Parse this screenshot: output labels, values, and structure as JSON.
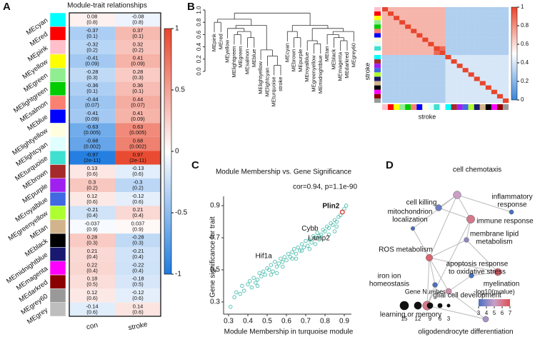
{
  "chart_data": [
    {
      "panel": "A",
      "type": "heatmap",
      "title": "Module-trait relationships",
      "rows": [
        "MEcyan",
        "MEred",
        "MEpink",
        "MEyellow",
        "MEgreen",
        "MElightgreen",
        "MEsalmon",
        "MEblue",
        "MElightyellow",
        "MElightcyan",
        "MEturquoise",
        "MEbrown",
        "MEpurple",
        "MEroyalblue",
        "MEgreenyellow",
        "MEtan",
        "MEblack",
        "MEmidnightblue",
        "MEmagenta",
        "MEdarkred",
        "MEgrey60",
        "MEgrey"
      ],
      "row_colors": [
        "#00ffff",
        "#ff0000",
        "#ffc0cb",
        "#ffff00",
        "#90ee90",
        "#00cc00",
        "#fa8072",
        "#0000ff",
        "#ffffe0",
        "#e0ffff",
        "#40e0d0",
        "#a52a2a",
        "#a020f0",
        "#4169e1",
        "#adff2f",
        "#d2b48c",
        "#000000",
        "#191970",
        "#ff00ff",
        "#8b0000",
        "#999999",
        "#bebebe"
      ],
      "columns": [
        "con",
        "stroke"
      ],
      "values": [
        [
          0.08,
          -0.08
        ],
        [
          -0.37,
          0.37
        ],
        [
          -0.32,
          0.32
        ],
        [
          -0.41,
          0.41
        ],
        [
          -0.28,
          0.28
        ],
        [
          -0.36,
          0.36
        ],
        [
          -0.44,
          0.44
        ],
        [
          -0.41,
          0.41
        ],
        [
          -0.63,
          0.63
        ],
        [
          -0.68,
          0.68
        ],
        [
          -0.97,
          0.97
        ],
        [
          0.13,
          -0.13
        ],
        [
          0.3,
          -0.3
        ],
        [
          0.12,
          -0.12
        ],
        [
          -0.21,
          0.21
        ],
        [
          -0.037,
          0.037
        ],
        [
          0.28,
          -0.28
        ],
        [
          0.21,
          -0.21
        ],
        [
          0.22,
          -0.22
        ],
        [
          0.18,
          -0.18
        ],
        [
          0.12,
          -0.12
        ],
        [
          -0.14,
          0.14
        ]
      ],
      "p_labels": [
        [
          "(0.8)",
          "(0.8)"
        ],
        [
          "(0.1)",
          "(0.1)"
        ],
        [
          "(0.2)",
          "(0.2)"
        ],
        [
          "(0.09)",
          "(0.09)"
        ],
        [
          "(0.3)",
          "(0.3)"
        ],
        [
          "(0.1)",
          "(0.1)"
        ],
        [
          "(0.07)",
          "(0.07)"
        ],
        [
          "(0.09)",
          "(0.09)"
        ],
        [
          "(0.005)",
          "(0.005)"
        ],
        [
          "(0.002)",
          "(0.002)"
        ],
        [
          "(2e-11)",
          "(2e-11)"
        ],
        [
          "(0.6)",
          "(0.6)"
        ],
        [
          "(0.2)",
          "(0.2)"
        ],
        [
          "(0.6)",
          "(0.6)"
        ],
        [
          "(0.4)",
          "(0.4)"
        ],
        [
          "(0.9)",
          "(0.9)"
        ],
        [
          "(0.3)",
          "(0.3)"
        ],
        [
          "(0.4)",
          "(0.4)"
        ],
        [
          "(0.4)",
          "(0.4)"
        ],
        [
          "(0.5)",
          "(0.5)"
        ],
        [
          "(0.6)",
          "(0.6)"
        ],
        [
          "(0.6)",
          "(0.6)"
        ]
      ],
      "zlim": [
        -1,
        1
      ],
      "zticks": [
        1,
        0.5,
        0,
        -0.5,
        -1
      ]
    },
    {
      "panel": "B",
      "type": "dendrogram",
      "leaves": [
        "MEpink",
        "MEred",
        "MEyellow",
        "MElightgreen",
        "MEgreen",
        "MEsalmon",
        "MEblue",
        "MElightyellow",
        "MElightcyan",
        "MEturquoise",
        "stroke",
        "MEcyan",
        "MEbrown",
        "MEpurple",
        "MEroyalblue",
        "MEgreenyellow",
        "MEmidnightblue",
        "MEtan",
        "MEblack",
        "MEmagenta",
        "MEdarkred",
        "MEgrey60"
      ],
      "leaf_label_colors": [
        "#000",
        "#000",
        "#000",
        "#000",
        "#000",
        "#000",
        "#000",
        "#000",
        "#000",
        "#000",
        "#e02020",
        "#000",
        "#000",
        "#000",
        "#000",
        "#000",
        "#000",
        "#000",
        "#000",
        "#000",
        "#000",
        "#000"
      ],
      "merges": [
        [
          9,
          10,
          0.1
        ],
        [
          8,
          22,
          0.25
        ],
        [
          7,
          23,
          0.35
        ],
        [
          5,
          6,
          0.55
        ],
        [
          3,
          4,
          0.6
        ],
        [
          26,
          25,
          0.65
        ],
        [
          2,
          27,
          0.7
        ],
        [
          28,
          24,
          0.75
        ],
        [
          0,
          1,
          0.8
        ],
        [
          30,
          29,
          0.85
        ],
        [
          12,
          13,
          0.55
        ],
        [
          11,
          32,
          0.65
        ],
        [
          15,
          16,
          0.45
        ],
        [
          14,
          34,
          0.5
        ],
        [
          19,
          20,
          0.5
        ],
        [
          18,
          36,
          0.55
        ],
        [
          17,
          37,
          0.6
        ],
        [
          38,
          21,
          0.65
        ],
        [
          35,
          39,
          0.7
        ],
        [
          33,
          40,
          0.75
        ],
        [
          31,
          41,
          0.95
        ]
      ],
      "ylim": [
        0,
        1
      ],
      "yticks": [
        {
          "value": 0,
          "label": "0.0"
        },
        0.2,
        0.4,
        0.6,
        0.8,
        {
          "value": 1,
          "label": "1.0"
        }
      ]
    },
    {
      "type": "correlation-heatmap",
      "ylabel": "stroke",
      "xlabel": "stroke",
      "side_colors": [
        "#ffc0cb",
        "#ff0000",
        "#ffff00",
        "#90ee90",
        "#00cc00",
        "#fa8072",
        "#0000ff",
        "#ffffe0",
        "#e0ffff",
        "#40e0d0",
        "#ffffff",
        "#00ffff",
        "#a52a2a",
        "#a020f0",
        "#4169e1",
        "#adff2f",
        "#191970",
        "#d2b48c",
        "#000000",
        "#ff00ff",
        "#8b0000",
        "#999999"
      ],
      "matrix": [
        [
          1,
          0.7,
          0.7,
          0.7,
          0.7,
          0.7,
          0.7,
          0.7,
          0.7,
          0.7,
          0.7,
          0.3,
          0.3,
          0.3,
          0.3,
          0.3,
          0.3,
          0.3,
          0.3,
          0.3,
          0.3,
          0.3
        ],
        [
          0.7,
          1,
          0.7,
          0.7,
          0.7,
          0.7,
          0.7,
          0.7,
          0.7,
          0.7,
          0.7,
          0.3,
          0.3,
          0.3,
          0.3,
          0.3,
          0.3,
          0.3,
          0.3,
          0.3,
          0.3,
          0.3
        ],
        [
          0.7,
          0.7,
          1,
          0.7,
          0.7,
          0.7,
          0.7,
          0.7,
          0.7,
          0.7,
          0.7,
          0.3,
          0.3,
          0.3,
          0.3,
          0.3,
          0.3,
          0.3,
          0.3,
          0.3,
          0.3,
          0.3
        ],
        [
          0.7,
          0.7,
          0.7,
          1,
          0.7,
          0.7,
          0.7,
          0.7,
          0.7,
          0.7,
          0.7,
          0.3,
          0.3,
          0.3,
          0.3,
          0.3,
          0.3,
          0.3,
          0.3,
          0.3,
          0.3,
          0.3
        ],
        [
          0.7,
          0.7,
          0.7,
          0.7,
          1,
          0.7,
          0.7,
          0.7,
          0.7,
          0.7,
          0.7,
          0.3,
          0.3,
          0.3,
          0.3,
          0.3,
          0.3,
          0.3,
          0.3,
          0.3,
          0.3,
          0.3
        ],
        [
          0.7,
          0.7,
          0.7,
          0.7,
          0.7,
          1,
          0.7,
          0.7,
          0.7,
          0.7,
          0.7,
          0.3,
          0.3,
          0.3,
          0.3,
          0.3,
          0.3,
          0.3,
          0.3,
          0.3,
          0.3,
          0.3
        ],
        [
          0.7,
          0.7,
          0.7,
          0.7,
          0.7,
          0.7,
          1,
          0.7,
          0.7,
          0.7,
          0.7,
          0.3,
          0.3,
          0.3,
          0.3,
          0.3,
          0.3,
          0.3,
          0.3,
          0.3,
          0.3,
          0.3
        ],
        [
          0.7,
          0.7,
          0.7,
          0.7,
          0.7,
          0.7,
          0.7,
          1,
          0.7,
          0.7,
          0.7,
          0.3,
          0.3,
          0.3,
          0.3,
          0.3,
          0.3,
          0.3,
          0.3,
          0.3,
          0.3,
          0.3
        ],
        [
          0.7,
          0.7,
          0.7,
          0.7,
          0.7,
          0.7,
          0.7,
          0.7,
          1,
          0.7,
          0.7,
          0.3,
          0.3,
          0.3,
          0.3,
          0.3,
          0.3,
          0.3,
          0.3,
          0.3,
          0.3,
          0.3
        ],
        [
          0.7,
          0.7,
          0.7,
          0.7,
          0.7,
          0.7,
          0.7,
          0.7,
          0.7,
          1,
          0.9,
          0.3,
          0.3,
          0.3,
          0.3,
          0.3,
          0.3,
          0.3,
          0.3,
          0.3,
          0.3,
          0.3
        ],
        [
          0.7,
          0.7,
          0.7,
          0.7,
          0.7,
          0.7,
          0.7,
          0.7,
          0.7,
          0.9,
          1,
          0.3,
          0.3,
          0.3,
          0.3,
          0.3,
          0.3,
          0.3,
          0.3,
          0.3,
          0.3,
          0.3
        ],
        [
          0.3,
          0.3,
          0.3,
          0.3,
          0.3,
          0.3,
          0.3,
          0.3,
          0.3,
          0.3,
          0.3,
          1,
          0.4,
          0.4,
          0.4,
          0.4,
          0.4,
          0.4,
          0.4,
          0.4,
          0.4,
          0.4
        ],
        [
          0.3,
          0.3,
          0.3,
          0.3,
          0.3,
          0.3,
          0.3,
          0.3,
          0.3,
          0.3,
          0.3,
          0.4,
          1,
          0.4,
          0.4,
          0.4,
          0.4,
          0.4,
          0.4,
          0.4,
          0.4,
          0.4
        ],
        [
          0.3,
          0.3,
          0.3,
          0.3,
          0.3,
          0.3,
          0.3,
          0.3,
          0.3,
          0.3,
          0.3,
          0.4,
          0.4,
          1,
          0.4,
          0.4,
          0.4,
          0.4,
          0.4,
          0.4,
          0.4,
          0.4
        ],
        [
          0.3,
          0.3,
          0.3,
          0.3,
          0.3,
          0.3,
          0.3,
          0.3,
          0.3,
          0.3,
          0.3,
          0.4,
          0.4,
          0.4,
          1,
          0.4,
          0.4,
          0.4,
          0.4,
          0.4,
          0.4,
          0.4
        ],
        [
          0.3,
          0.3,
          0.3,
          0.3,
          0.3,
          0.3,
          0.3,
          0.3,
          0.3,
          0.3,
          0.3,
          0.4,
          0.4,
          0.4,
          0.4,
          1,
          0.4,
          0.4,
          0.4,
          0.4,
          0.4,
          0.4
        ],
        [
          0.3,
          0.3,
          0.3,
          0.3,
          0.3,
          0.3,
          0.3,
          0.3,
          0.3,
          0.3,
          0.3,
          0.4,
          0.4,
          0.4,
          0.4,
          0.4,
          1,
          0.4,
          0.4,
          0.4,
          0.4,
          0.4
        ],
        [
          0.3,
          0.3,
          0.3,
          0.3,
          0.3,
          0.3,
          0.3,
          0.3,
          0.3,
          0.3,
          0.3,
          0.4,
          0.4,
          0.4,
          0.4,
          0.4,
          0.4,
          1,
          0.4,
          0.4,
          0.4,
          0.4
        ],
        [
          0.3,
          0.3,
          0.3,
          0.3,
          0.3,
          0.3,
          0.3,
          0.3,
          0.3,
          0.3,
          0.3,
          0.4,
          0.4,
          0.4,
          0.4,
          0.4,
          0.4,
          0.4,
          1,
          0.4,
          0.4,
          0.4
        ],
        [
          0.3,
          0.3,
          0.3,
          0.3,
          0.3,
          0.3,
          0.3,
          0.3,
          0.3,
          0.3,
          0.3,
          0.4,
          0.4,
          0.4,
          0.4,
          0.4,
          0.4,
          0.4,
          0.4,
          1,
          0.4,
          0.4
        ],
        [
          0.3,
          0.3,
          0.3,
          0.3,
          0.3,
          0.3,
          0.3,
          0.3,
          0.3,
          0.3,
          0.3,
          0.4,
          0.4,
          0.4,
          0.4,
          0.4,
          0.4,
          0.4,
          0.4,
          0.4,
          1,
          0.4
        ],
        [
          0.3,
          0.3,
          0.3,
          0.3,
          0.3,
          0.3,
          0.3,
          0.3,
          0.3,
          0.3,
          0.3,
          0.4,
          0.4,
          0.4,
          0.4,
          0.4,
          0.4,
          0.4,
          0.4,
          0.4,
          0.4,
          1
        ]
      ],
      "zlim": [
        0,
        1
      ],
      "zticks": [
        1,
        0.8,
        0.6,
        0.4,
        0.2,
        0
      ]
    },
    {
      "panel": "C",
      "type": "scatter",
      "title": "Module Membership vs. Gene Significance",
      "subtitle": "cor=0.94, p=1.1e-90",
      "xlabel": "Module Membership in turquoise module",
      "ylabel": "Gene significance for trait",
      "color": "#4fbfb0",
      "x": [
        0.31,
        0.33,
        0.34,
        0.36,
        0.37,
        0.38,
        0.4,
        0.41,
        0.42,
        0.43,
        0.44,
        0.45,
        0.46,
        0.47,
        0.48,
        0.49,
        0.5,
        0.51,
        0.52,
        0.53,
        0.54,
        0.55,
        0.56,
        0.57,
        0.58,
        0.59,
        0.6,
        0.61,
        0.62,
        0.63,
        0.64,
        0.65,
        0.66,
        0.67,
        0.68,
        0.69,
        0.7,
        0.71,
        0.72,
        0.73,
        0.74,
        0.75,
        0.76,
        0.77,
        0.78,
        0.79,
        0.8,
        0.81,
        0.82,
        0.83,
        0.84,
        0.85,
        0.86,
        0.87,
        0.88,
        0.9,
        0.91,
        0.45,
        0.52,
        0.58,
        0.63,
        0.68,
        0.72,
        0.77,
        0.82,
        0.86,
        0.55,
        0.65,
        0.75,
        0.85
      ],
      "y": [
        0.27,
        0.33,
        0.36,
        0.35,
        0.4,
        0.37,
        0.41,
        0.43,
        0.39,
        0.45,
        0.42,
        0.44,
        0.48,
        0.46,
        0.49,
        0.47,
        0.51,
        0.5,
        0.53,
        0.49,
        0.55,
        0.52,
        0.54,
        0.57,
        0.55,
        0.58,
        0.56,
        0.6,
        0.58,
        0.61,
        0.63,
        0.6,
        0.64,
        0.62,
        0.66,
        0.64,
        0.68,
        0.65,
        0.69,
        0.67,
        0.71,
        0.7,
        0.73,
        0.71,
        0.72,
        0.75,
        0.74,
        0.77,
        0.76,
        0.79,
        0.78,
        0.81,
        0.8,
        0.83,
        0.84,
        0.88,
        0.9,
        0.4,
        0.47,
        0.52,
        0.57,
        0.62,
        0.63,
        0.69,
        0.72,
        0.77,
        0.48,
        0.57,
        0.66,
        0.74
      ],
      "annotations": [
        {
          "label": "Plin2",
          "x": 0.89,
          "y": 0.86,
          "color": "#e02020"
        },
        {
          "label": "Cybb",
          "x": 0.78,
          "y": 0.72,
          "color": "#000000"
        },
        {
          "label": "Lamp2",
          "x": 0.84,
          "y": 0.66,
          "color": "#000000"
        },
        {
          "label": "Hif1a",
          "x": 0.54,
          "y": 0.55,
          "color": "#000000"
        }
      ],
      "xlim": [
        0.274,
        0.937
      ],
      "ylim": [
        0.224,
        0.958
      ],
      "xticks": [
        0.3,
        0.4,
        0.5,
        0.6,
        0.7,
        0.8,
        0.9
      ],
      "yticks": [
        0.3,
        0.5,
        0.7,
        0.9
      ]
    },
    {
      "panel": "D",
      "type": "network",
      "nodes": [
        {
          "label": [
            "cell chemotaxis"
          ],
          "size": 12,
          "logp": 5
        },
        {
          "label": [
            "cell killing"
          ],
          "size": 9,
          "logp": 3.5
        },
        {
          "label": [
            "inflammatory",
            "response"
          ],
          "size": 5,
          "logp": 3
        },
        {
          "label": [
            "immune response"
          ],
          "size": 13,
          "logp": 6
        },
        {
          "label": [
            "mitochondrion",
            "localization"
          ],
          "size": 4,
          "logp": 3
        },
        {
          "label": [
            "membrane lipid",
            "metabolism"
          ],
          "size": 6,
          "logp": 4
        },
        {
          "label": [
            "ROS metabolism"
          ],
          "size": 10,
          "logp": 6.5
        },
        {
          "label": [
            "apoptosis response",
            "to oxidative stress"
          ],
          "size": 11,
          "logp": 6.5
        },
        {
          "label": [
            "myelination"
          ],
          "size": 6,
          "logp": 3
        },
        {
          "label": [
            "iron ion",
            "homeostasis"
          ],
          "size": 6,
          "logp": 3
        },
        {
          "label": [
            "glial cell development"
          ],
          "size": 8,
          "logp": 5.5
        },
        {
          "label": [
            "learning or memory"
          ],
          "size": 15,
          "logp": 6
        },
        {
          "label": [
            "oligodendrocyte differentiation"
          ],
          "size": 8,
          "logp": 4.5
        }
      ],
      "size_legend_title": "Gene Number",
      "size_legend": [
        15,
        12,
        9,
        6,
        3
      ],
      "color_legend_title": "-log10(pvalue)",
      "color_ticks": [
        3,
        4,
        5,
        6,
        7
      ],
      "zlim": [
        3,
        7
      ]
    }
  ]
}
